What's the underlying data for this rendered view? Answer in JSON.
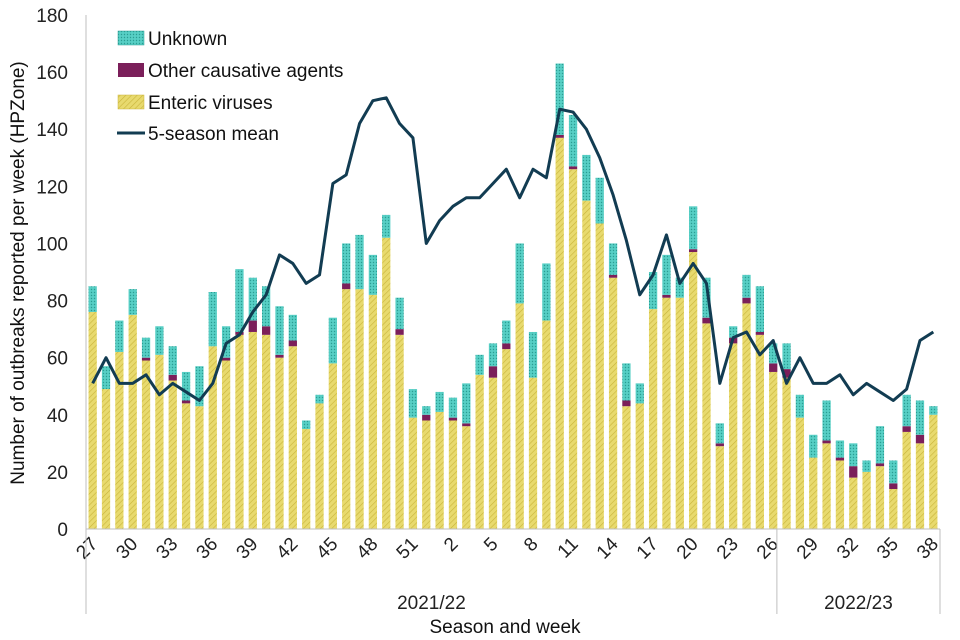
{
  "colors": {
    "enteric": "#e8da6e",
    "enteric_hatch": "#c9b43a",
    "other": "#7b1f5a",
    "unknown": "#57cfc5",
    "unknown_dot": "#2a9d93",
    "mean_line": "#123c52",
    "axis": "#bfbfbf"
  },
  "chart_data": {
    "type": "bar",
    "stacked": true,
    "title": "",
    "xlabel": "Season and week",
    "ylabel": "Number of outbreaks reported per week (HPZone)",
    "ylim": [
      0,
      180
    ],
    "yticks": [
      0,
      20,
      40,
      60,
      80,
      100,
      120,
      140,
      160,
      180
    ],
    "weeks": [
      27,
      28,
      29,
      30,
      31,
      32,
      33,
      34,
      35,
      36,
      37,
      38,
      39,
      40,
      41,
      42,
      43,
      44,
      45,
      46,
      47,
      48,
      49,
      50,
      51,
      52,
      1,
      2,
      3,
      4,
      5,
      6,
      7,
      8,
      9,
      10,
      11,
      12,
      13,
      14,
      15,
      16,
      17,
      18,
      19,
      20,
      21,
      22,
      23,
      24,
      25,
      26,
      27,
      28,
      29,
      30,
      31,
      32,
      33,
      34,
      35,
      36,
      37,
      38
    ],
    "tick_labels": [
      "27",
      "30",
      "33",
      "36",
      "39",
      "42",
      "45",
      "48",
      "51",
      "2",
      "5",
      "8",
      "11",
      "14",
      "17",
      "20",
      "23",
      "26",
      "29",
      "32",
      "35",
      "38"
    ],
    "seasons": [
      {
        "label": "2021/22",
        "start_index": 0,
        "end_index": 51
      },
      {
        "label": "2022/23",
        "start_index": 52,
        "end_index": 63
      }
    ],
    "series": [
      {
        "name": "Enteric viruses",
        "values": [
          76,
          49,
          62,
          75,
          59,
          61,
          52,
          44,
          43,
          64,
          59,
          68,
          69,
          68,
          60,
          64,
          35,
          44,
          58,
          84,
          84,
          82,
          102,
          68,
          39,
          38,
          41,
          38,
          36,
          54,
          53,
          63,
          79,
          53,
          73,
          137,
          126,
          115,
          107,
          88,
          43,
          44,
          77,
          81,
          81,
          97,
          72,
          29,
          65,
          79,
          68,
          55,
          53,
          39,
          25,
          30,
          24,
          18,
          20,
          22,
          14,
          34,
          30,
          40
        ]
      },
      {
        "name": "Other causative agents",
        "values": [
          0,
          0,
          0,
          0,
          1,
          0,
          2,
          1,
          0,
          0,
          1,
          1,
          4,
          3,
          1,
          2,
          0,
          0,
          0,
          2,
          0,
          0,
          0,
          2,
          0,
          2,
          0,
          1,
          1,
          0,
          4,
          2,
          0,
          0,
          0,
          1,
          1,
          0,
          0,
          1,
          2,
          0,
          0,
          1,
          0,
          1,
          2,
          1,
          2,
          2,
          1,
          3,
          3,
          0,
          0,
          1,
          1,
          4,
          0,
          1,
          2,
          2,
          3,
          0
        ]
      },
      {
        "name": "Unknown",
        "values": [
          9,
          8,
          11,
          9,
          7,
          10,
          10,
          10,
          14,
          19,
          11,
          22,
          15,
          14,
          17,
          9,
          3,
          3,
          16,
          14,
          19,
          14,
          8,
          11,
          10,
          3,
          7,
          7,
          14,
          7,
          8,
          8,
          21,
          16,
          20,
          25,
          18,
          16,
          16,
          11,
          13,
          7,
          13,
          14,
          7,
          15,
          14,
          7,
          4,
          8,
          16,
          7,
          9,
          8,
          8,
          14,
          6,
          8,
          4,
          13,
          8,
          11,
          12,
          3
        ]
      },
      {
        "name": "5-season mean",
        "type": "line",
        "values": [
          51,
          60,
          51,
          51,
          54,
          47,
          51,
          48,
          45,
          51,
          65,
          68,
          76,
          82,
          96,
          93,
          86,
          89,
          121,
          124,
          142,
          150,
          151,
          142,
          137,
          100,
          108,
          113,
          116,
          116,
          121,
          126,
          116,
          126,
          123,
          147,
          146,
          140,
          130,
          117,
          101,
          82,
          89,
          103,
          86,
          93,
          86,
          51,
          67,
          69,
          61,
          66,
          51,
          60,
          51,
          51,
          54,
          47,
          51,
          48,
          45,
          49,
          66,
          69
        ]
      }
    ],
    "legend": {
      "placement": "top-left",
      "entries": [
        "Unknown",
        "Other causative agents",
        "Enteric viruses",
        "5-season mean"
      ]
    }
  }
}
